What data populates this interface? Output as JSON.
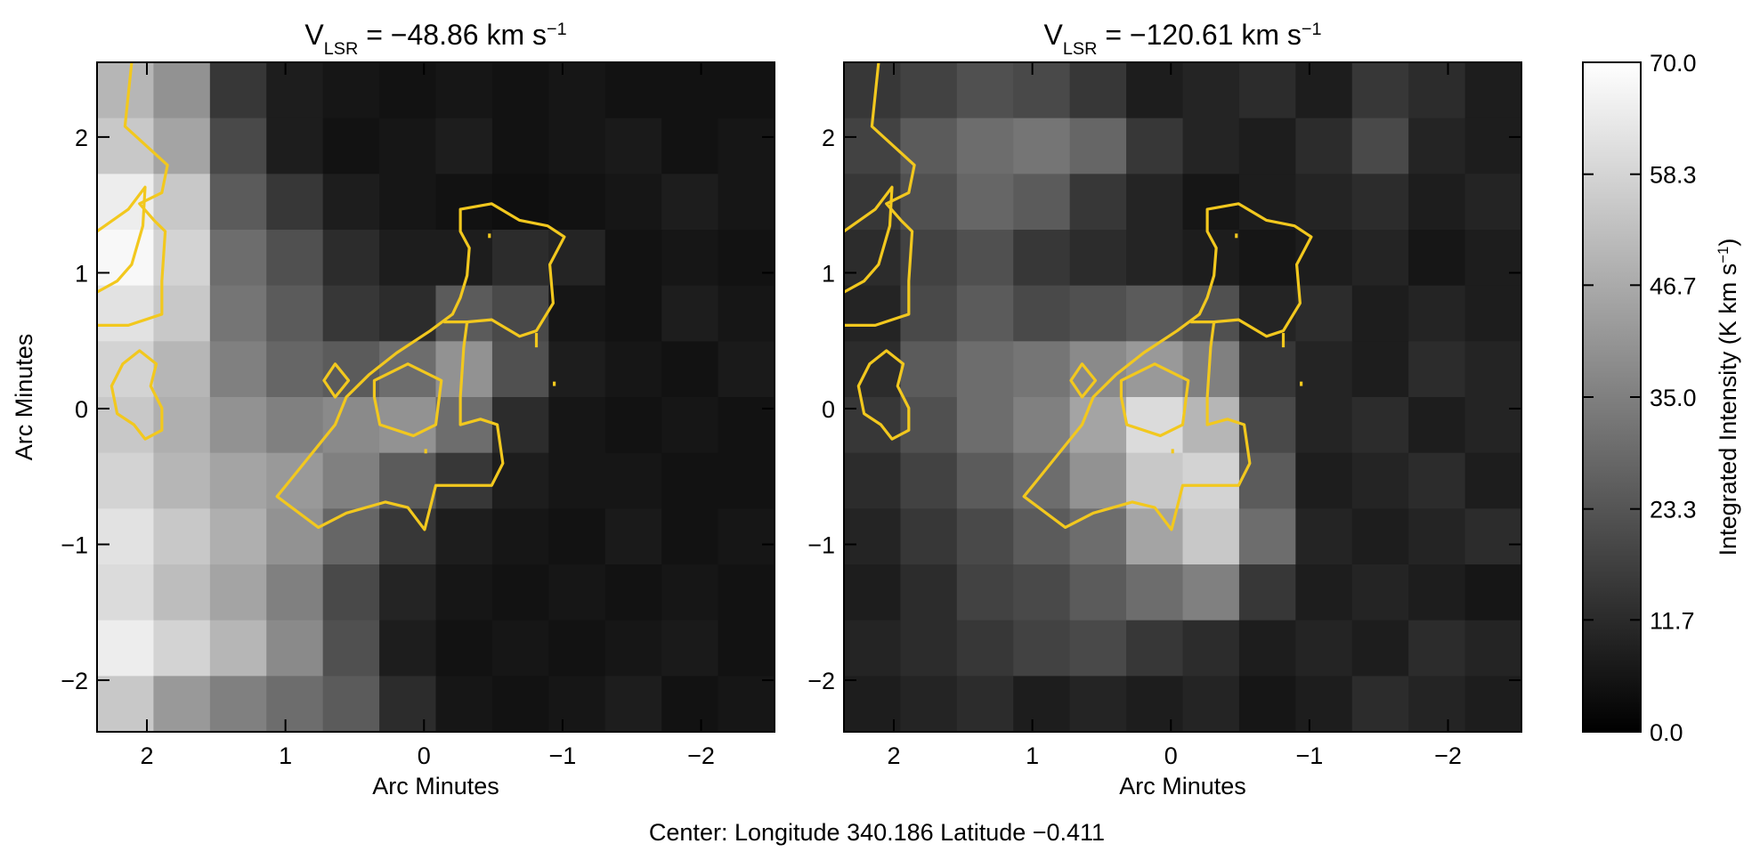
{
  "chart_data": [
    {
      "type": "heatmap",
      "title": [
        "V",
        "LSR",
        " = −48.86 km s",
        "−1"
      ],
      "xlabel": "Arc Minutes",
      "ylabel": "Arc Minutes",
      "xlim": [
        2.36,
        -2.53
      ],
      "ylim": [
        -2.38,
        2.55
      ],
      "xticks": [
        2,
        1,
        0,
        {
          "value": -1,
          "label": "−1"
        },
        {
          "value": -2,
          "label": "−2"
        }
      ],
      "yticks": [
        2,
        1,
        0,
        {
          "value": -1,
          "label": "−1"
        },
        {
          "value": -2,
          "label": "−2"
        }
      ],
      "colormap": "gray",
      "vlim": [
        0,
        70
      ],
      "z": [
        [
          50,
          40,
          15,
          8,
          6,
          5,
          6,
          5,
          6,
          5,
          5,
          5
        ],
        [
          55,
          45,
          20,
          8,
          5,
          6,
          8,
          5,
          6,
          7,
          5,
          6
        ],
        [
          65,
          55,
          25,
          15,
          8,
          6,
          5,
          4,
          5,
          6,
          8,
          6
        ],
        [
          68,
          58,
          30,
          22,
          12,
          8,
          8,
          12,
          10,
          5,
          6,
          5
        ],
        [
          62,
          55,
          32,
          25,
          15,
          12,
          25,
          20,
          6,
          5,
          8,
          6
        ],
        [
          58,
          50,
          35,
          28,
          25,
          30,
          40,
          22,
          8,
          6,
          5,
          7
        ],
        [
          55,
          48,
          40,
          35,
          38,
          40,
          30,
          12,
          6,
          5,
          6,
          5
        ],
        [
          58,
          50,
          45,
          42,
          35,
          25,
          15,
          8,
          6,
          6,
          5,
          5
        ],
        [
          62,
          55,
          48,
          40,
          28,
          15,
          8,
          6,
          5,
          7,
          5,
          6
        ],
        [
          60,
          52,
          45,
          35,
          20,
          10,
          6,
          5,
          6,
          5,
          6,
          5
        ],
        [
          65,
          58,
          50,
          38,
          22,
          8,
          5,
          6,
          5,
          6,
          7,
          5
        ],
        [
          55,
          42,
          35,
          30,
          25,
          12,
          6,
          5,
          6,
          8,
          5,
          6
        ]
      ]
    },
    {
      "type": "heatmap",
      "title": [
        "V",
        "LSR",
        " = −120.61 km s",
        "−1"
      ],
      "xlabel": "Arc Minutes",
      "xlim": [
        2.36,
        -2.53
      ],
      "ylim": [
        -2.38,
        2.55
      ],
      "xticks": [
        2,
        1,
        0,
        {
          "value": -1,
          "label": "−1"
        },
        {
          "value": -2,
          "label": "−2"
        }
      ],
      "yticks": [
        2,
        1,
        0,
        {
          "value": -1,
          "label": "−1"
        },
        {
          "value": -2,
          "label": "−2"
        }
      ],
      "colormap": "gray",
      "vlim": [
        0,
        70
      ],
      "z": [
        [
          15,
          18,
          22,
          20,
          15,
          8,
          10,
          12,
          8,
          15,
          12,
          8
        ],
        [
          18,
          25,
          30,
          32,
          28,
          15,
          10,
          8,
          12,
          20,
          10,
          8
        ],
        [
          15,
          22,
          28,
          25,
          15,
          10,
          6,
          8,
          10,
          12,
          8,
          10
        ],
        [
          12,
          18,
          22,
          15,
          12,
          10,
          8,
          6,
          8,
          10,
          6,
          8
        ],
        [
          10,
          20,
          25,
          20,
          22,
          25,
          22,
          10,
          12,
          8,
          10,
          8
        ],
        [
          12,
          25,
          30,
          32,
          38,
          42,
          35,
          15,
          10,
          8,
          12,
          10
        ],
        [
          15,
          22,
          30,
          35,
          45,
          60,
          50,
          20,
          10,
          12,
          8,
          10
        ],
        [
          12,
          18,
          25,
          30,
          40,
          55,
          58,
          25,
          8,
          10,
          12,
          8
        ],
        [
          10,
          15,
          20,
          25,
          30,
          45,
          55,
          30,
          10,
          8,
          10,
          12
        ],
        [
          8,
          12,
          18,
          20,
          25,
          30,
          35,
          15,
          8,
          10,
          8,
          6
        ],
        [
          10,
          12,
          15,
          18,
          20,
          15,
          12,
          8,
          10,
          8,
          12,
          10
        ],
        [
          8,
          10,
          12,
          8,
          10,
          8,
          10,
          6,
          8,
          12,
          10,
          8
        ]
      ]
    }
  ],
  "colorbar": {
    "label": [
      "Integrated Intensity (K km s",
      "−1",
      ")"
    ],
    "lim": [
      0,
      70
    ],
    "ticks": [
      {
        "value": 0,
        "label": "0.0"
      },
      11.7,
      23.3,
      {
        "value": 35,
        "label": "35.0"
      },
      46.7,
      58.3,
      {
        "value": 70,
        "label": "70.0"
      }
    ]
  },
  "footer": "Center:  Longitude 340.186 Latitude −0.411"
}
